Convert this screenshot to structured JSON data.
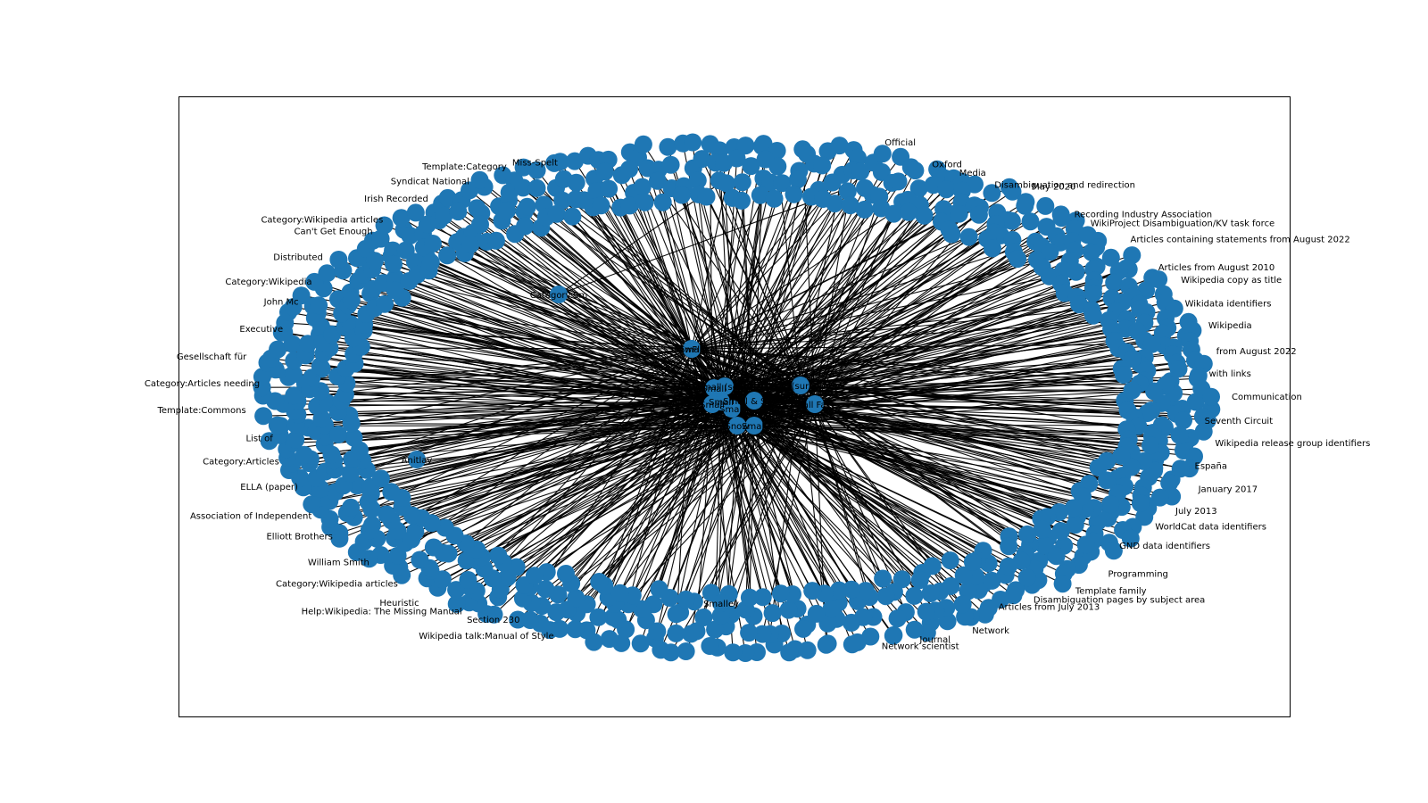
{
  "figure": {
    "background": "#ffffff",
    "node_color": "#1f77b4",
    "edge_color": "#000000",
    "graph_type": "network graph (hub nodes in center, ring of outer nodes)"
  },
  "inner_labels": [
    "Small",
    "Small (song)",
    "Small & Small",
    "Small (surname)",
    "Small Faces",
    "Small",
    "Snow",
    "Small",
    "Small",
    "Small",
    "SnowFlake"
  ],
  "mid_labels": [
    "Category:Sm",
    "Small",
    "Anitlav",
    "Smalley"
  ],
  "outer_labels": [
    "Wikipedia talk:Manual of Style",
    "Section 230",
    "Help:Wikipedia: The Missing Manual",
    "Heuristic",
    "Category:Wikipedia articles",
    "William Smith",
    "Elliott Brothers",
    "Association of Independent",
    "ELLA (paper)",
    "Category:Articles",
    "List of",
    "Template:Commons",
    "Category:Articles needing",
    "Gesellschaft für",
    "Executive",
    "John Mc",
    "Category:Wikipedia",
    "Distributed",
    "Can't Get Enough",
    "Category:Wikipedia articles",
    "Irish Recorded",
    "Syndicat National",
    "Template:Category",
    "Miss-Spelt",
    "Official",
    "Oxford",
    "Media",
    "Disambiguation and redirection",
    "May 2020",
    "Recording Industry Association",
    "WikiProject Disambiguation/KV task force",
    "Articles containing statements from August 2022",
    "Articles from August 2010",
    "Wikipedia copy as title",
    "Wikidata identifiers",
    "Wikipedia",
    "from August 2022",
    "with links",
    "Communication",
    "Seventh Circuit",
    "Wikipedia release group identifiers",
    "España",
    "January 2017",
    "July 2013",
    "WorldCat data identifiers",
    "GND data identifiers",
    "Programming",
    "Template family",
    "Disambiguation pages by subject area",
    "Articles from July 2013",
    "Network",
    "Journal",
    "Network scientist"
  ]
}
